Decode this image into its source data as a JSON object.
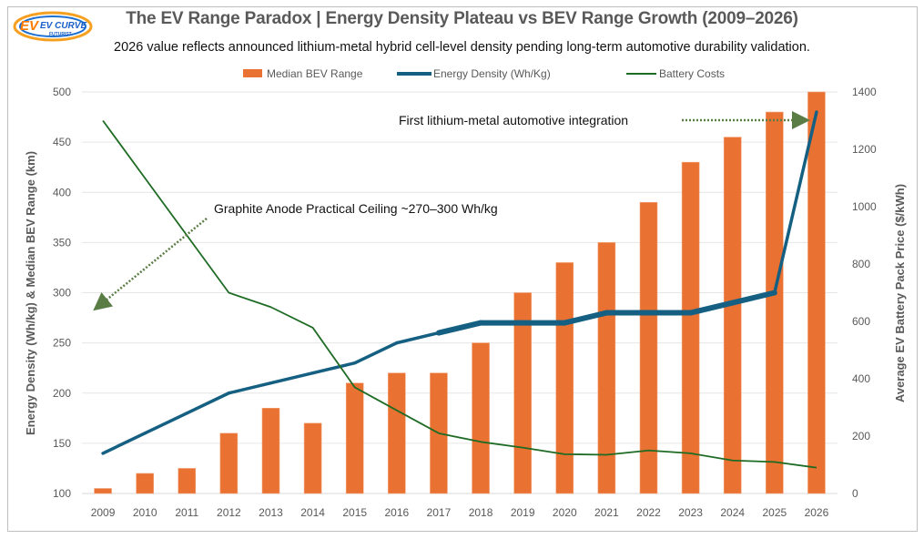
{
  "header": {
    "logo_text": "EV CURVE",
    "logo_subtext": "FUTURIST",
    "title": "The EV Range Paradox | Energy Density Plateau vs BEV Range Growth (2009–2026)",
    "subtitle": "2026 value reflects announced lithium-metal hybrid cell-level density pending long-term automotive durability validation."
  },
  "colors": {
    "bar": "#e97132",
    "energy_line": "#156082",
    "cost_line": "#1e6b24",
    "annotation_arrow": "#5a7d45",
    "grid": "#e6e6e6",
    "tick_text": "#595959"
  },
  "chart_data": {
    "type": "bar",
    "title": "The EV Range Paradox | Energy Density Plateau vs BEV Range Growth (2009–2026)",
    "subtitle": "2026 value reflects announced lithium-metal hybrid cell-level density pending long-term automotive durability validation.",
    "categories": [
      "2009",
      "2010",
      "2011",
      "2012",
      "2013",
      "2014",
      "2015",
      "2016",
      "2017",
      "2018",
      "2019",
      "2020",
      "2021",
      "2022",
      "2023",
      "2024",
      "2025",
      "2026"
    ],
    "ylabel": "Energy Density (Wh/kg) & Median BEV Range (km)",
    "y2label": "Average EV Battery Pack Price ($/kWh)",
    "ylim": [
      100,
      500
    ],
    "y2lim": [
      0,
      1400
    ],
    "yticks": [
      "100",
      "150",
      "200",
      "250",
      "300",
      "350",
      "400",
      "450",
      "500"
    ],
    "y2ticks": [
      "0",
      "200",
      "400",
      "600",
      "800",
      "1000",
      "1200",
      "1400"
    ],
    "grid": true,
    "legend_position": "top",
    "series": [
      {
        "name": "Median BEV Range",
        "type": "bar",
        "axis": "left",
        "values": [
          105,
          120,
          125,
          160,
          185,
          170,
          210,
          220,
          220,
          250,
          300,
          330,
          350,
          390,
          430,
          455,
          480,
          500
        ]
      },
      {
        "name": "Energy Density (Wh/Kg)",
        "type": "line",
        "axis": "left",
        "values": [
          140,
          160,
          180,
          200,
          210,
          220,
          230,
          250,
          260,
          270,
          270,
          270,
          280,
          280,
          280,
          290,
          300,
          480
        ]
      },
      {
        "name": "Battery Costs",
        "type": "line",
        "axis": "right",
        "values": [
          1300,
          1100,
          900,
          700,
          650,
          578,
          370,
          290,
          210,
          180,
          160,
          137,
          135,
          150,
          140,
          115,
          110,
          90
        ]
      }
    ],
    "annotations": [
      {
        "text": "Graphite Anode Practical Ceiling ~270–300 Wh/kg",
        "arrow": "dotted, pointing down-left"
      },
      {
        "text": "First lithium-metal automotive integration",
        "arrow": "dotted, pointing right toward 2026"
      }
    ]
  }
}
